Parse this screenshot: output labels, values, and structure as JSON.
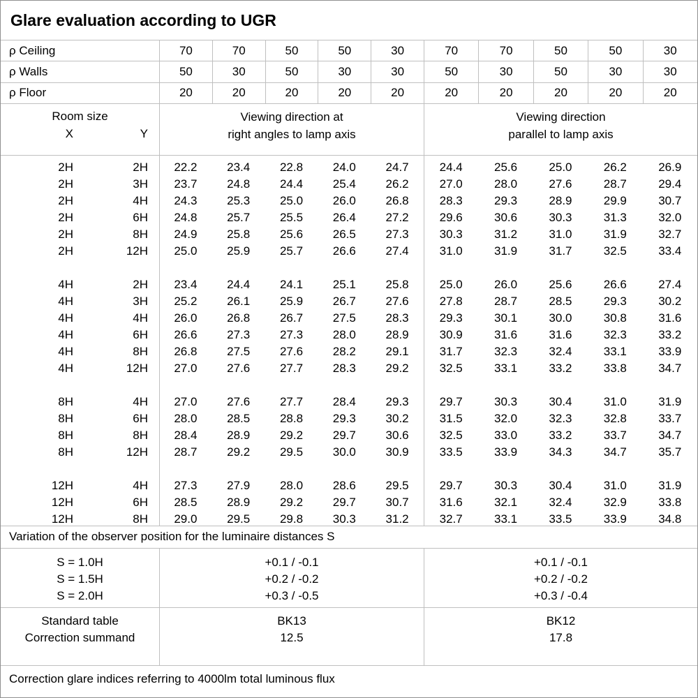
{
  "title": "Glare evaluation according to UGR",
  "colors": {
    "grid_line": "#bfbfbf",
    "outer_border": "#8f8f8f",
    "text": "#000000",
    "background": "#ffffff"
  },
  "surface_reflectance": {
    "rows": [
      {
        "label": "ρ Ceiling",
        "values": [
          "70",
          "70",
          "50",
          "50",
          "30",
          "70",
          "70",
          "50",
          "50",
          "30"
        ]
      },
      {
        "label": "ρ Walls",
        "values": [
          "50",
          "30",
          "50",
          "30",
          "30",
          "50",
          "30",
          "50",
          "30",
          "30"
        ]
      },
      {
        "label": "ρ Floor",
        "values": [
          "20",
          "20",
          "20",
          "20",
          "20",
          "20",
          "20",
          "20",
          "20",
          "20"
        ]
      }
    ]
  },
  "header": {
    "room_size": "Room size",
    "x": "X",
    "y": "Y",
    "right_angle_group": [
      "Viewing direction at",
      "right angles to lamp axis"
    ],
    "parallel_group": [
      "Viewing direction",
      "parallel to lamp axis"
    ]
  },
  "ugr_values": {
    "groups": [
      {
        "rows": [
          {
            "x": "2H",
            "y": "2H",
            "values": [
              "22.2",
              "23.4",
              "22.8",
              "24.0",
              "24.7",
              "24.4",
              "25.6",
              "25.0",
              "26.2",
              "26.9"
            ]
          },
          {
            "x": "2H",
            "y": "3H",
            "values": [
              "23.7",
              "24.8",
              "24.4",
              "25.4",
              "26.2",
              "27.0",
              "28.0",
              "27.6",
              "28.7",
              "29.4"
            ]
          },
          {
            "x": "2H",
            "y": "4H",
            "values": [
              "24.3",
              "25.3",
              "25.0",
              "26.0",
              "26.8",
              "28.3",
              "29.3",
              "28.9",
              "29.9",
              "30.7"
            ]
          },
          {
            "x": "2H",
            "y": "6H",
            "values": [
              "24.8",
              "25.7",
              "25.5",
              "26.4",
              "27.2",
              "29.6",
              "30.6",
              "30.3",
              "31.3",
              "32.0"
            ]
          },
          {
            "x": "2H",
            "y": "8H",
            "values": [
              "24.9",
              "25.8",
              "25.6",
              "26.5",
              "27.3",
              "30.3",
              "31.2",
              "31.0",
              "31.9",
              "32.7"
            ]
          },
          {
            "x": "2H",
            "y": "12H",
            "values": [
              "25.0",
              "25.9",
              "25.7",
              "26.6",
              "27.4",
              "31.0",
              "31.9",
              "31.7",
              "32.5",
              "33.4"
            ]
          }
        ]
      },
      {
        "rows": [
          {
            "x": "4H",
            "y": "2H",
            "values": [
              "23.4",
              "24.4",
              "24.1",
              "25.1",
              "25.8",
              "25.0",
              "26.0",
              "25.6",
              "26.6",
              "27.4"
            ]
          },
          {
            "x": "4H",
            "y": "3H",
            "values": [
              "25.2",
              "26.1",
              "25.9",
              "26.7",
              "27.6",
              "27.8",
              "28.7",
              "28.5",
              "29.3",
              "30.2"
            ]
          },
          {
            "x": "4H",
            "y": "4H",
            "values": [
              "26.0",
              "26.8",
              "26.7",
              "27.5",
              "28.3",
              "29.3",
              "30.1",
              "30.0",
              "30.8",
              "31.6"
            ]
          },
          {
            "x": "4H",
            "y": "6H",
            "values": [
              "26.6",
              "27.3",
              "27.3",
              "28.0",
              "28.9",
              "30.9",
              "31.6",
              "31.6",
              "32.3",
              "33.2"
            ]
          },
          {
            "x": "4H",
            "y": "8H",
            "values": [
              "26.8",
              "27.5",
              "27.6",
              "28.2",
              "29.1",
              "31.7",
              "32.3",
              "32.4",
              "33.1",
              "33.9"
            ]
          },
          {
            "x": "4H",
            "y": "12H",
            "values": [
              "27.0",
              "27.6",
              "27.7",
              "28.3",
              "29.2",
              "32.5",
              "33.1",
              "33.2",
              "33.8",
              "34.7"
            ]
          }
        ]
      },
      {
        "rows": [
          {
            "x": "8H",
            "y": "4H",
            "values": [
              "27.0",
              "27.6",
              "27.7",
              "28.4",
              "29.3",
              "29.7",
              "30.3",
              "30.4",
              "31.0",
              "31.9"
            ]
          },
          {
            "x": "8H",
            "y": "6H",
            "values": [
              "28.0",
              "28.5",
              "28.8",
              "29.3",
              "30.2",
              "31.5",
              "32.0",
              "32.3",
              "32.8",
              "33.7"
            ]
          },
          {
            "x": "8H",
            "y": "8H",
            "values": [
              "28.4",
              "28.9",
              "29.2",
              "29.7",
              "30.6",
              "32.5",
              "33.0",
              "33.2",
              "33.7",
              "34.7"
            ]
          },
          {
            "x": "8H",
            "y": "12H",
            "values": [
              "28.7",
              "29.2",
              "29.5",
              "30.0",
              "30.9",
              "33.5",
              "33.9",
              "34.3",
              "34.7",
              "35.7"
            ]
          }
        ]
      },
      {
        "rows": [
          {
            "x": "12H",
            "y": "4H",
            "values": [
              "27.3",
              "27.9",
              "28.0",
              "28.6",
              "29.5",
              "29.7",
              "30.3",
              "30.4",
              "31.0",
              "31.9"
            ]
          },
          {
            "x": "12H",
            "y": "6H",
            "values": [
              "28.5",
              "28.9",
              "29.2",
              "29.7",
              "30.7",
              "31.6",
              "32.1",
              "32.4",
              "32.9",
              "33.8"
            ]
          },
          {
            "x": "12H",
            "y": "8H",
            "values": [
              "29.0",
              "29.5",
              "29.8",
              "30.3",
              "31.2",
              "32.7",
              "33.1",
              "33.5",
              "33.9",
              "34.8"
            ]
          }
        ]
      }
    ]
  },
  "variation_note": "Variation of the observer position for the luminaire distances S",
  "observer_variation": {
    "s_values": [
      "S = 1.0H",
      "S = 1.5H",
      "S = 2.0H"
    ],
    "right_angle": [
      "+0.1 / -0.1",
      "+0.2 / -0.2",
      "+0.3 / -0.5"
    ],
    "parallel": [
      "+0.1 / -0.1",
      "+0.2 / -0.2",
      "+0.3 / -0.4"
    ]
  },
  "summary": {
    "labels": [
      "Standard table",
      "Correction summand"
    ],
    "right_angle": {
      "standard_table": "BK13",
      "correction_summand": "12.5"
    },
    "parallel": {
      "standard_table": "BK12",
      "correction_summand": "17.8"
    }
  },
  "footnote": "Correction glare indices referring to 4000lm total luminous flux"
}
